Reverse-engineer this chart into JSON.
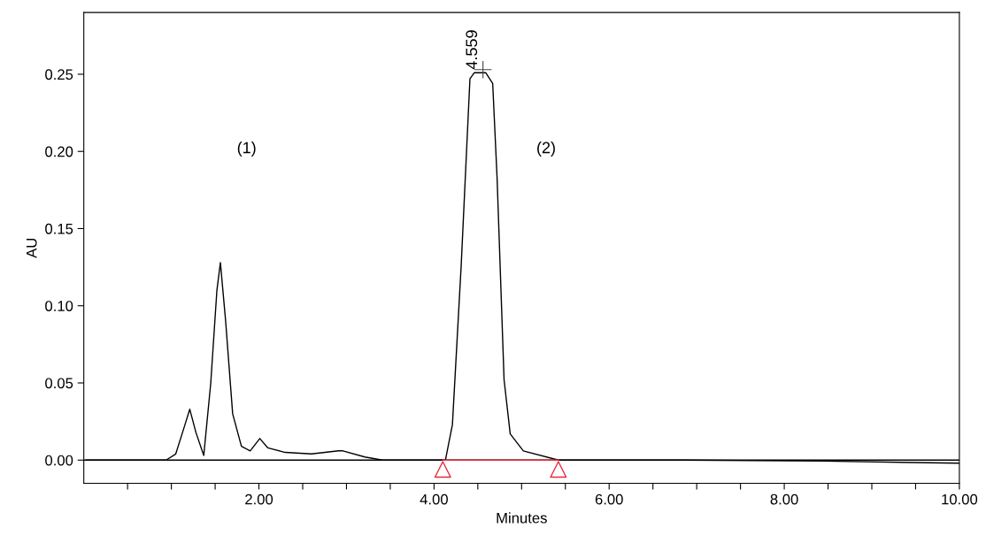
{
  "chart_data": {
    "type": "line",
    "xlabel": "Minutes",
    "ylabel": "AU",
    "xlim": [
      0,
      10
    ],
    "ylim": [
      -0.015,
      0.29
    ],
    "xticks": [
      {
        "value": 0.5,
        "label": null
      },
      {
        "value": 1.0,
        "label": null
      },
      {
        "value": 1.5,
        "label": null
      },
      {
        "value": 2,
        "label": "2.00"
      },
      {
        "value": 2.5,
        "label": null
      },
      {
        "value": 3.0,
        "label": null
      },
      {
        "value": 3.5,
        "label": null
      },
      {
        "value": 4,
        "label": "4.00"
      },
      {
        "value": 4.5,
        "label": null
      },
      {
        "value": 5.0,
        "label": null
      },
      {
        "value": 5.5,
        "label": null
      },
      {
        "value": 6,
        "label": "6.00"
      },
      {
        "value": 6.5,
        "label": null
      },
      {
        "value": 7.0,
        "label": null
      },
      {
        "value": 7.5,
        "label": null
      },
      {
        "value": 8,
        "label": "8.00"
      },
      {
        "value": 8.5,
        "label": null
      },
      {
        "value": 9.0,
        "label": null
      },
      {
        "value": 9.5,
        "label": null
      },
      {
        "value": 10,
        "label": "10.00"
      }
    ],
    "yticks": [
      {
        "value": 0,
        "label": "0.00"
      },
      {
        "value": 0.05,
        "label": "0.05"
      },
      {
        "value": 0.1,
        "label": "0.10"
      },
      {
        "value": 0.15,
        "label": "0.15"
      },
      {
        "value": 0.2,
        "label": "0.20"
      },
      {
        "value": 0.25,
        "label": "0.25"
      }
    ],
    "grid": false,
    "series": [
      {
        "color": "#000000",
        "x": [
          0.03,
          0.94,
          1.05,
          1.15,
          1.21,
          1.28,
          1.37,
          1.45,
          1.52,
          1.56,
          1.62,
          1.7,
          1.8,
          1.9,
          2.01,
          2.1,
          2.3,
          2.6,
          2.91,
          2.96,
          3.21,
          3.41,
          4.13,
          4.21,
          4.31,
          4.41,
          4.46,
          4.59,
          4.67,
          4.72,
          4.8,
          4.87,
          5.02,
          5.42,
          6.83,
          8.44,
          10.0
        ],
        "values": [
          0.0,
          0.0,
          0.004,
          0.022,
          0.033,
          0.018,
          0.003,
          0.05,
          0.11,
          0.128,
          0.09,
          0.03,
          0.009,
          0.006,
          0.014,
          0.008,
          0.005,
          0.004,
          0.006,
          0.006,
          0.002,
          0.0,
          0.0,
          0.023,
          0.126,
          0.247,
          0.251,
          0.251,
          0.244,
          0.183,
          0.052,
          0.017,
          0.006,
          0.0,
          0.0,
          -0.0006,
          -0.002
        ]
      },
      {
        "color": "#e8283c",
        "x": [
          4.1,
          5.42
        ],
        "values": [
          0.0,
          0.0
        ]
      },
      {
        "type": "scatter",
        "marker": "triangle",
        "color": "#e8283c",
        "x": [
          4.1,
          5.42
        ],
        "values": [
          -0.006,
          -0.006
        ]
      }
    ],
    "ref_lines": [
      {
        "axis": "y",
        "value": 0,
        "color": "#000000"
      }
    ],
    "annotations": [
      {
        "text": "4.559",
        "x": 4.559,
        "y": 0.253
      },
      "(1)",
      "(2)"
    ]
  }
}
